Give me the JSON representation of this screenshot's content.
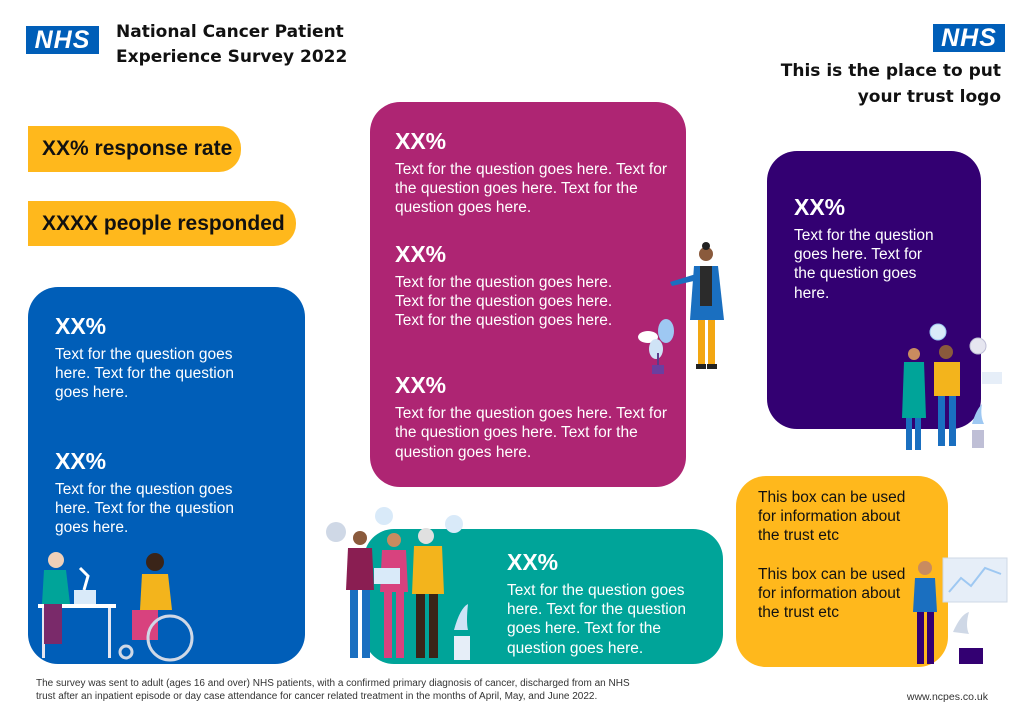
{
  "header": {
    "nhs_logo_left": "NHS",
    "survey_title_line1": "National Cancer Patient",
    "survey_title_line2": "Experience Survey 2022",
    "nhs_logo_right": "NHS",
    "trust_logo_line1": "This is the place to put",
    "trust_logo_line2": "your trust logo"
  },
  "summary": {
    "response_rate": "XX% response rate",
    "people_responded": "XXXX people responded"
  },
  "blue_card": {
    "stat1": "XX%",
    "text1": "Text for the question goes here. Text for the question goes here.",
    "stat2": "XX%",
    "text2": "Text for the question goes here. Text for the question goes here."
  },
  "magenta_card": {
    "stat1": "XX%",
    "text1": "Text for the question goes here. Text for the question goes here. Text for the question goes here.",
    "stat2": "XX%",
    "text2": "Text for the question goes here. Text for the question goes here. Text for the question goes here.",
    "stat3": "XX%",
    "text3": "Text for the question goes here. Text for the question goes here. Text for the question goes here."
  },
  "purple_card": {
    "stat": "XX%",
    "text": "Text for the question goes here. Text for the question goes here."
  },
  "teal_card": {
    "stat": "XX%",
    "text": "Text for the question goes here. Text for the question goes here. Text for the question goes here."
  },
  "yellow_card": {
    "info1": "This box can be used for information about the trust etc",
    "info2": "This box can be used for information about the trust etc"
  },
  "footer": {
    "note_line1": "The survey was sent to adult (ages 16 and over) NHS patients, with a confirmed primary diagnosis of cancer, discharged from an NHS",
    "note_line2": "trust after an inpatient episode or day case attendance for cancer related treatment in the months of April, May, and June 2022.",
    "website": "www.ncpes.co.uk"
  },
  "colors": {
    "nhs_blue": "#005EB8",
    "yellow": "#FFB81C",
    "blue_card": "#005EB8",
    "magenta_card": "#AE2573",
    "purple_card": "#330072",
    "teal_card": "#00A499"
  }
}
